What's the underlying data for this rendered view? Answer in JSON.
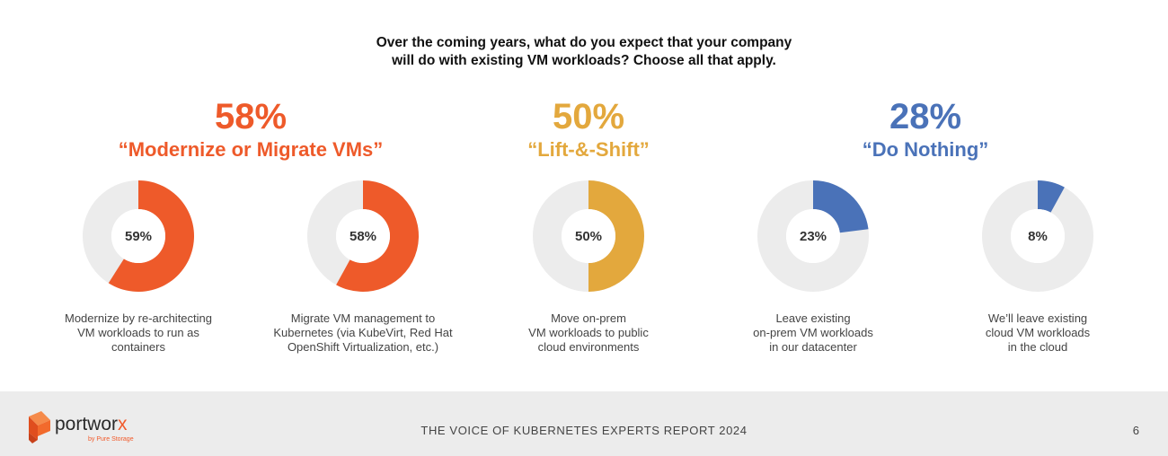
{
  "title": {
    "line1": "Over the coming years, what do you expect that your company",
    "line2": "will do with existing VM workloads? Choose all that apply."
  },
  "colors": {
    "modernize": "#ee5a2a",
    "lift_shift": "#e3a83d",
    "do_nothing": "#4a72b8",
    "track": "#ececec"
  },
  "groups": [
    {
      "pct": "58%",
      "label": "“Modernize or Migrate VMs”",
      "color": "#ee5a2a"
    },
    {
      "pct": "50%",
      "label": "“Lift-&-Shift”",
      "color": "#e3a83d"
    },
    {
      "pct": "28%",
      "label": "“Do Nothing”",
      "color": "#4a72b8"
    }
  ],
  "chart_data": {
    "type": "pie",
    "donuts": [
      {
        "value": 59,
        "label": "59%",
        "color": "#ee5a2a",
        "description": [
          "Modernize by re-architecting",
          "VM workloads to run as",
          "containers"
        ]
      },
      {
        "value": 58,
        "label": "58%",
        "color": "#ee5a2a",
        "description": [
          "Migrate VM management to",
          "Kubernetes (via KubeVirt, Red Hat",
          "OpenShift Virtualization, etc.)"
        ]
      },
      {
        "value": 50,
        "label": "50%",
        "color": "#e3a83d",
        "description": [
          "Move on-prem",
          "VM workloads to public",
          "cloud environments"
        ]
      },
      {
        "value": 23,
        "label": "23%",
        "color": "#4a72b8",
        "description": [
          "Leave existing",
          "on-prem VM workloads",
          "in our datacenter"
        ]
      },
      {
        "value": 8,
        "label": "8%",
        "color": "#4a72b8",
        "description": [
          "We’ll leave existing",
          "cloud VM workloads",
          "in the cloud"
        ]
      }
    ]
  },
  "footer": {
    "brand_main": "portwor",
    "brand_x": "x",
    "brand_sub": "by Pure Storage",
    "report_title": "THE VOICE OF KUBERNETES EXPERTS REPORT 2024",
    "page_number": "6"
  }
}
